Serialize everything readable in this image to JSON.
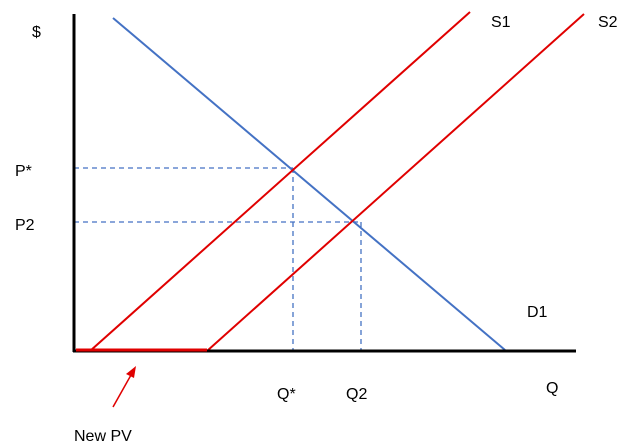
{
  "labels": {
    "y_axis": "$",
    "x_axis": "Q",
    "p_star": "P*",
    "p2": "P2",
    "q_star": "Q*",
    "q2": "Q2",
    "s1": "S1",
    "s2": "S2",
    "d1": "D1",
    "new_pv": "New PV"
  },
  "colors": {
    "axis": "#000000",
    "demand": "#4472C4",
    "supply": "#E00000",
    "guide": "#4472C4",
    "text": "#000000"
  }
}
